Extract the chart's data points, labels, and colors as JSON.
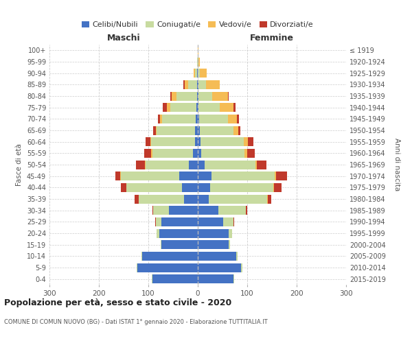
{
  "age_groups": [
    "0-4",
    "5-9",
    "10-14",
    "15-19",
    "20-24",
    "25-29",
    "30-34",
    "35-39",
    "40-44",
    "45-49",
    "50-54",
    "55-59",
    "60-64",
    "65-69",
    "70-74",
    "75-79",
    "80-84",
    "85-89",
    "90-94",
    "95-99",
    "100+"
  ],
  "birth_years": [
    "2015-2019",
    "2010-2014",
    "2005-2009",
    "2000-2004",
    "1995-1999",
    "1990-1994",
    "1985-1989",
    "1980-1984",
    "1975-1979",
    "1970-1974",
    "1965-1969",
    "1960-1964",
    "1955-1959",
    "1950-1954",
    "1945-1949",
    "1940-1944",
    "1935-1939",
    "1930-1934",
    "1925-1929",
    "1920-1924",
    "≤ 1919"
  ],
  "males": {
    "celibe": [
      92,
      122,
      112,
      73,
      78,
      73,
      58,
      28,
      32,
      38,
      18,
      10,
      6,
      5,
      4,
      3,
      1,
      1,
      1,
      0,
      0
    ],
    "coniugato": [
      1,
      2,
      2,
      2,
      5,
      12,
      32,
      92,
      112,
      118,
      88,
      82,
      88,
      78,
      68,
      52,
      42,
      18,
      4,
      1,
      0
    ],
    "vedovo": [
      0,
      0,
      0,
      0,
      0,
      0,
      0,
      0,
      0,
      1,
      1,
      2,
      2,
      2,
      4,
      8,
      10,
      8,
      4,
      1,
      0
    ],
    "divorziato": [
      0,
      0,
      0,
      0,
      0,
      1,
      2,
      8,
      12,
      10,
      18,
      15,
      10,
      5,
      5,
      8,
      3,
      2,
      0,
      0,
      0
    ]
  },
  "females": {
    "nubile": [
      72,
      88,
      78,
      62,
      62,
      52,
      42,
      22,
      25,
      28,
      14,
      7,
      5,
      4,
      3,
      2,
      1,
      1,
      0,
      0,
      0
    ],
    "coniugata": [
      1,
      2,
      2,
      3,
      8,
      20,
      55,
      118,
      128,
      128,
      102,
      88,
      88,
      68,
      58,
      42,
      28,
      15,
      4,
      1,
      0
    ],
    "vedova": [
      0,
      0,
      0,
      0,
      0,
      0,
      0,
      1,
      1,
      2,
      3,
      5,
      8,
      10,
      18,
      28,
      32,
      28,
      14,
      3,
      1
    ],
    "divorziata": [
      0,
      0,
      0,
      0,
      0,
      1,
      3,
      8,
      15,
      22,
      20,
      15,
      12,
      4,
      4,
      4,
      2,
      1,
      0,
      0,
      0
    ]
  },
  "colors": {
    "celibe": "#4472C4",
    "coniugato": "#c8dba0",
    "vedovo": "#f5bc55",
    "divorziato": "#c0392b"
  },
  "xlim": 300,
  "title": "Popolazione per età, sesso e stato civile - 2020",
  "subtitle": "COMUNE DI COMUN NUOVO (BG) - Dati ISTAT 1° gennaio 2020 - Elaborazione TUTTITALIA.IT",
  "ylabel_left": "Fasce di età",
  "ylabel_right": "Anni di nascita",
  "xlabel_left": "Maschi",
  "xlabel_right": "Femmine",
  "legend_labels": [
    "Celibi/Nubili",
    "Coniugati/e",
    "Vedovi/e",
    "Divorziati/e"
  ],
  "bg_color": "#ffffff",
  "grid_color": "#cccccc",
  "tick_color": "#888888",
  "text_color": "#555555"
}
